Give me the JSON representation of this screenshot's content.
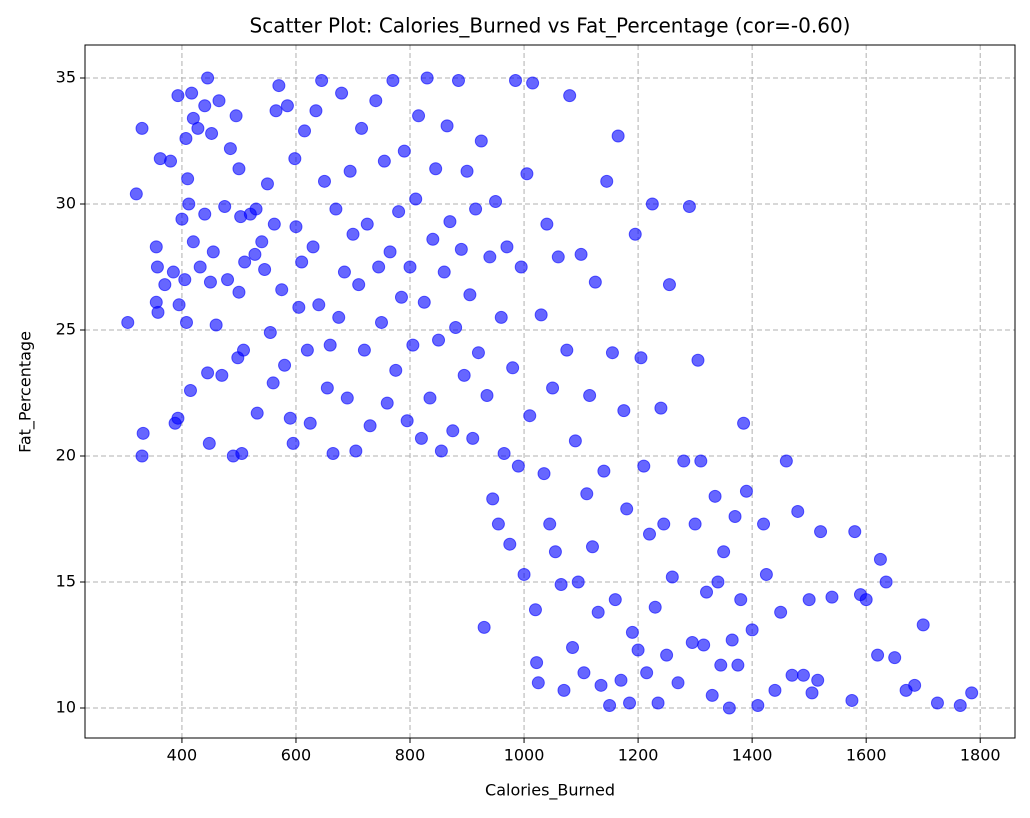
{
  "chart_data": {
    "type": "scatter",
    "title": "Scatter Plot: Calories_Burned vs Fat_Percentage (cor=-0.60)",
    "x_label": "Calories_Burned",
    "y_label": "Fat_Percentage",
    "color": "#0000ff",
    "grid": true,
    "xlim": [
      230,
      1861
    ],
    "ylim": [
      8.81,
      36.31
    ],
    "xticks": [
      400,
      600,
      800,
      1000,
      1200,
      1400,
      1600,
      1800
    ],
    "yticks": [
      10,
      15,
      20,
      25,
      30,
      35
    ],
    "x": [
      305,
      320,
      330,
      332,
      330,
      355,
      355,
      357,
      358,
      362,
      370,
      380,
      385,
      388,
      393,
      393,
      395,
      400,
      405,
      407,
      408,
      410,
      412,
      415,
      417,
      420,
      420,
      428,
      432,
      440,
      440,
      445,
      445,
      448,
      450,
      452,
      455,
      460,
      465,
      470,
      475,
      480,
      485,
      490,
      495,
      498,
      500,
      500,
      503,
      505,
      508,
      510,
      520,
      528,
      530,
      532,
      540,
      545,
      550,
      555,
      560,
      562,
      565,
      570,
      575,
      580,
      585,
      590,
      595,
      598,
      600,
      605,
      610,
      615,
      620,
      625,
      630,
      635,
      640,
      645,
      650,
      655,
      660,
      665,
      670,
      675,
      680,
      685,
      690,
      695,
      700,
      705,
      710,
      715,
      720,
      725,
      730,
      740,
      745,
      750,
      755,
      760,
      765,
      770,
      775,
      780,
      785,
      790,
      795,
      800,
      805,
      810,
      815,
      820,
      825,
      830,
      835,
      840,
      845,
      850,
      855,
      860,
      865,
      870,
      875,
      880,
      885,
      890,
      895,
      900,
      905,
      910,
      915,
      920,
      925,
      930,
      935,
      940,
      945,
      950,
      955,
      960,
      965,
      970,
      975,
      980,
      985,
      990,
      995,
      1000,
      1005,
      1010,
      1015,
      1020,
      1022,
      1025,
      1030,
      1035,
      1040,
      1045,
      1050,
      1055,
      1060,
      1065,
      1070,
      1075,
      1080,
      1085,
      1090,
      1095,
      1100,
      1105,
      1110,
      1115,
      1120,
      1125,
      1130,
      1135,
      1140,
      1145,
      1150,
      1155,
      1160,
      1165,
      1170,
      1175,
      1180,
      1185,
      1190,
      1195,
      1200,
      1205,
      1210,
      1215,
      1220,
      1225,
      1230,
      1235,
      1240,
      1245,
      1250,
      1255,
      1260,
      1270,
      1280,
      1290,
      1295,
      1300,
      1305,
      1310,
      1315,
      1320,
      1330,
      1335,
      1340,
      1345,
      1350,
      1360,
      1365,
      1370,
      1375,
      1380,
      1385,
      1390,
      1400,
      1410,
      1420,
      1425,
      1440,
      1450,
      1460,
      1470,
      1480,
      1490,
      1500,
      1505,
      1515,
      1520,
      1540,
      1575,
      1580,
      1590,
      1600,
      1620,
      1625,
      1635,
      1650,
      1670,
      1685,
      1700,
      1725,
      1765,
      1785
    ],
    "values": [
      25.3,
      30.4,
      33,
      20.9,
      20,
      26.1,
      28.3,
      27.5,
      25.7,
      31.8,
      26.8,
      31.7,
      27.3,
      21.3,
      21.5,
      34.3,
      26,
      29.4,
      27,
      32.6,
      25.3,
      31,
      30,
      22.6,
      34.4,
      28.5,
      33.4,
      33,
      27.5,
      29.6,
      33.9,
      35,
      23.3,
      20.5,
      26.9,
      32.8,
      28.1,
      25.2,
      34.1,
      23.2,
      29.9,
      27,
      32.2,
      20,
      33.5,
      23.9,
      26.5,
      31.4,
      29.5,
      20.1,
      24.2,
      27.7,
      29.6,
      28,
      29.8,
      21.7,
      28.5,
      27.4,
      30.8,
      24.9,
      22.9,
      29.2,
      33.7,
      34.7,
      26.6,
      23.6,
      33.9,
      21.5,
      20.5,
      31.8,
      29.1,
      25.9,
      27.7,
      32.9,
      24.2,
      21.3,
      28.3,
      33.7,
      26,
      34.9,
      30.9,
      22.7,
      24.4,
      20.1,
      29.8,
      25.5,
      34.4,
      27.3,
      22.3,
      31.3,
      28.8,
      20.2,
      26.8,
      33,
      24.2,
      29.2,
      21.2,
      34.1,
      27.5,
      25.3,
      31.7,
      22.1,
      28.1,
      34.9,
      23.4,
      29.7,
      26.3,
      32.1,
      21.4,
      27.5,
      24.4,
      30.2,
      33.5,
      20.7,
      26.1,
      35,
      22.3,
      28.6,
      31.4,
      24.6,
      20.2,
      27.3,
      33.1,
      29.3,
      21,
      25.1,
      34.9,
      28.2,
      23.2,
      31.3,
      26.4,
      20.7,
      29.8,
      24.1,
      32.5,
      13.2,
      22.4,
      27.9,
      18.3,
      30.1,
      17.3,
      25.5,
      20.1,
      28.3,
      16.5,
      23.5,
      34.9,
      19.6,
      27.5,
      15.3,
      31.2,
      21.6,
      34.8,
      13.9,
      11.8,
      11,
      25.6,
      19.3,
      29.2,
      17.3,
      22.7,
      16.2,
      27.9,
      14.9,
      10.7,
      24.2,
      34.3,
      12.4,
      20.6,
      15,
      28,
      11.4,
      18.5,
      22.4,
      16.4,
      26.9,
      13.8,
      10.9,
      19.4,
      30.9,
      10.1,
      24.1,
      14.3,
      32.7,
      11.1,
      21.8,
      17.9,
      10.2,
      13,
      28.8,
      12.3,
      23.9,
      19.6,
      11.4,
      16.9,
      30,
      14,
      10.2,
      21.9,
      17.3,
      12.1,
      26.8,
      15.2,
      11,
      19.8,
      29.9,
      12.6,
      17.3,
      23.8,
      19.8,
      12.5,
      14.6,
      10.5,
      18.4,
      15,
      11.7,
      16.2,
      10,
      12.7,
      17.6,
      11.7,
      14.3,
      21.3,
      18.6,
      13.1,
      10.1,
      17.3,
      15.3,
      10.7,
      13.8,
      19.8,
      11.3,
      17.8,
      11.3,
      14.3,
      10.6,
      11.1,
      17,
      14.4,
      10.3,
      17,
      14.5,
      14.3,
      12.1,
      15.9,
      15,
      12,
      10.7,
      10.9,
      13.3,
      10.2,
      10.1,
      10.6
    ]
  }
}
